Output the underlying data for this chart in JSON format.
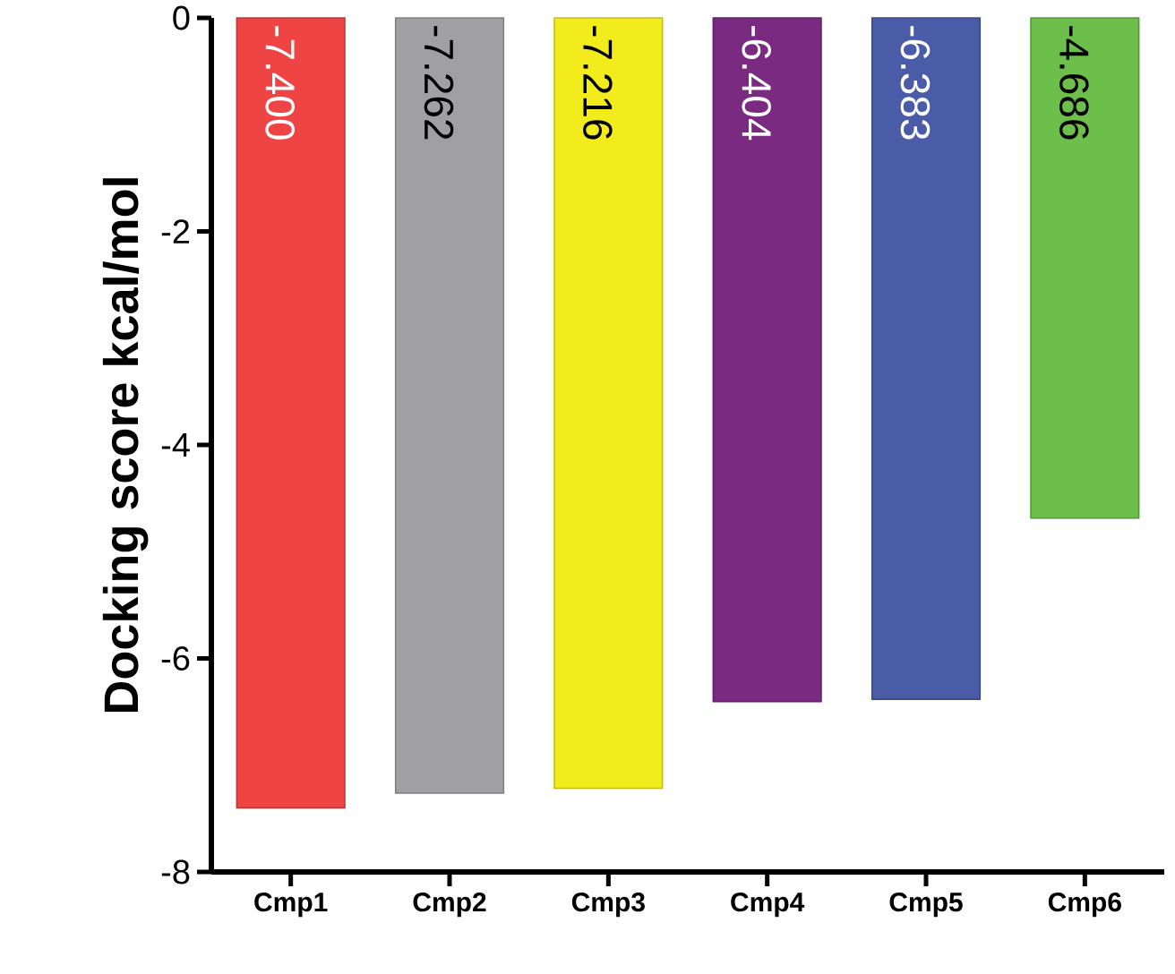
{
  "chart_data": {
    "type": "bar",
    "ylabel": "Docking score kcal/mol",
    "categories": [
      "Cmp1",
      "Cmp2",
      "Cmp3",
      "Cmp4",
      "Cmp5",
      "Cmp6"
    ],
    "values": [
      -7.4,
      -7.262,
      -7.216,
      -6.404,
      -6.383,
      -4.686
    ],
    "value_labels": [
      "-7.400",
      "-7.262",
      "-7.216",
      "-6.404",
      "-6.383",
      "-4.686"
    ],
    "colors": [
      "#ee4444",
      "#a0a0a2",
      "#f2ec1c",
      "#7b2a82",
      "#4a5ca8",
      "#6cbf4a"
    ],
    "ylim": [
      -8,
      0
    ],
    "yticks": [
      0,
      -2,
      -4,
      -6,
      -8
    ]
  }
}
